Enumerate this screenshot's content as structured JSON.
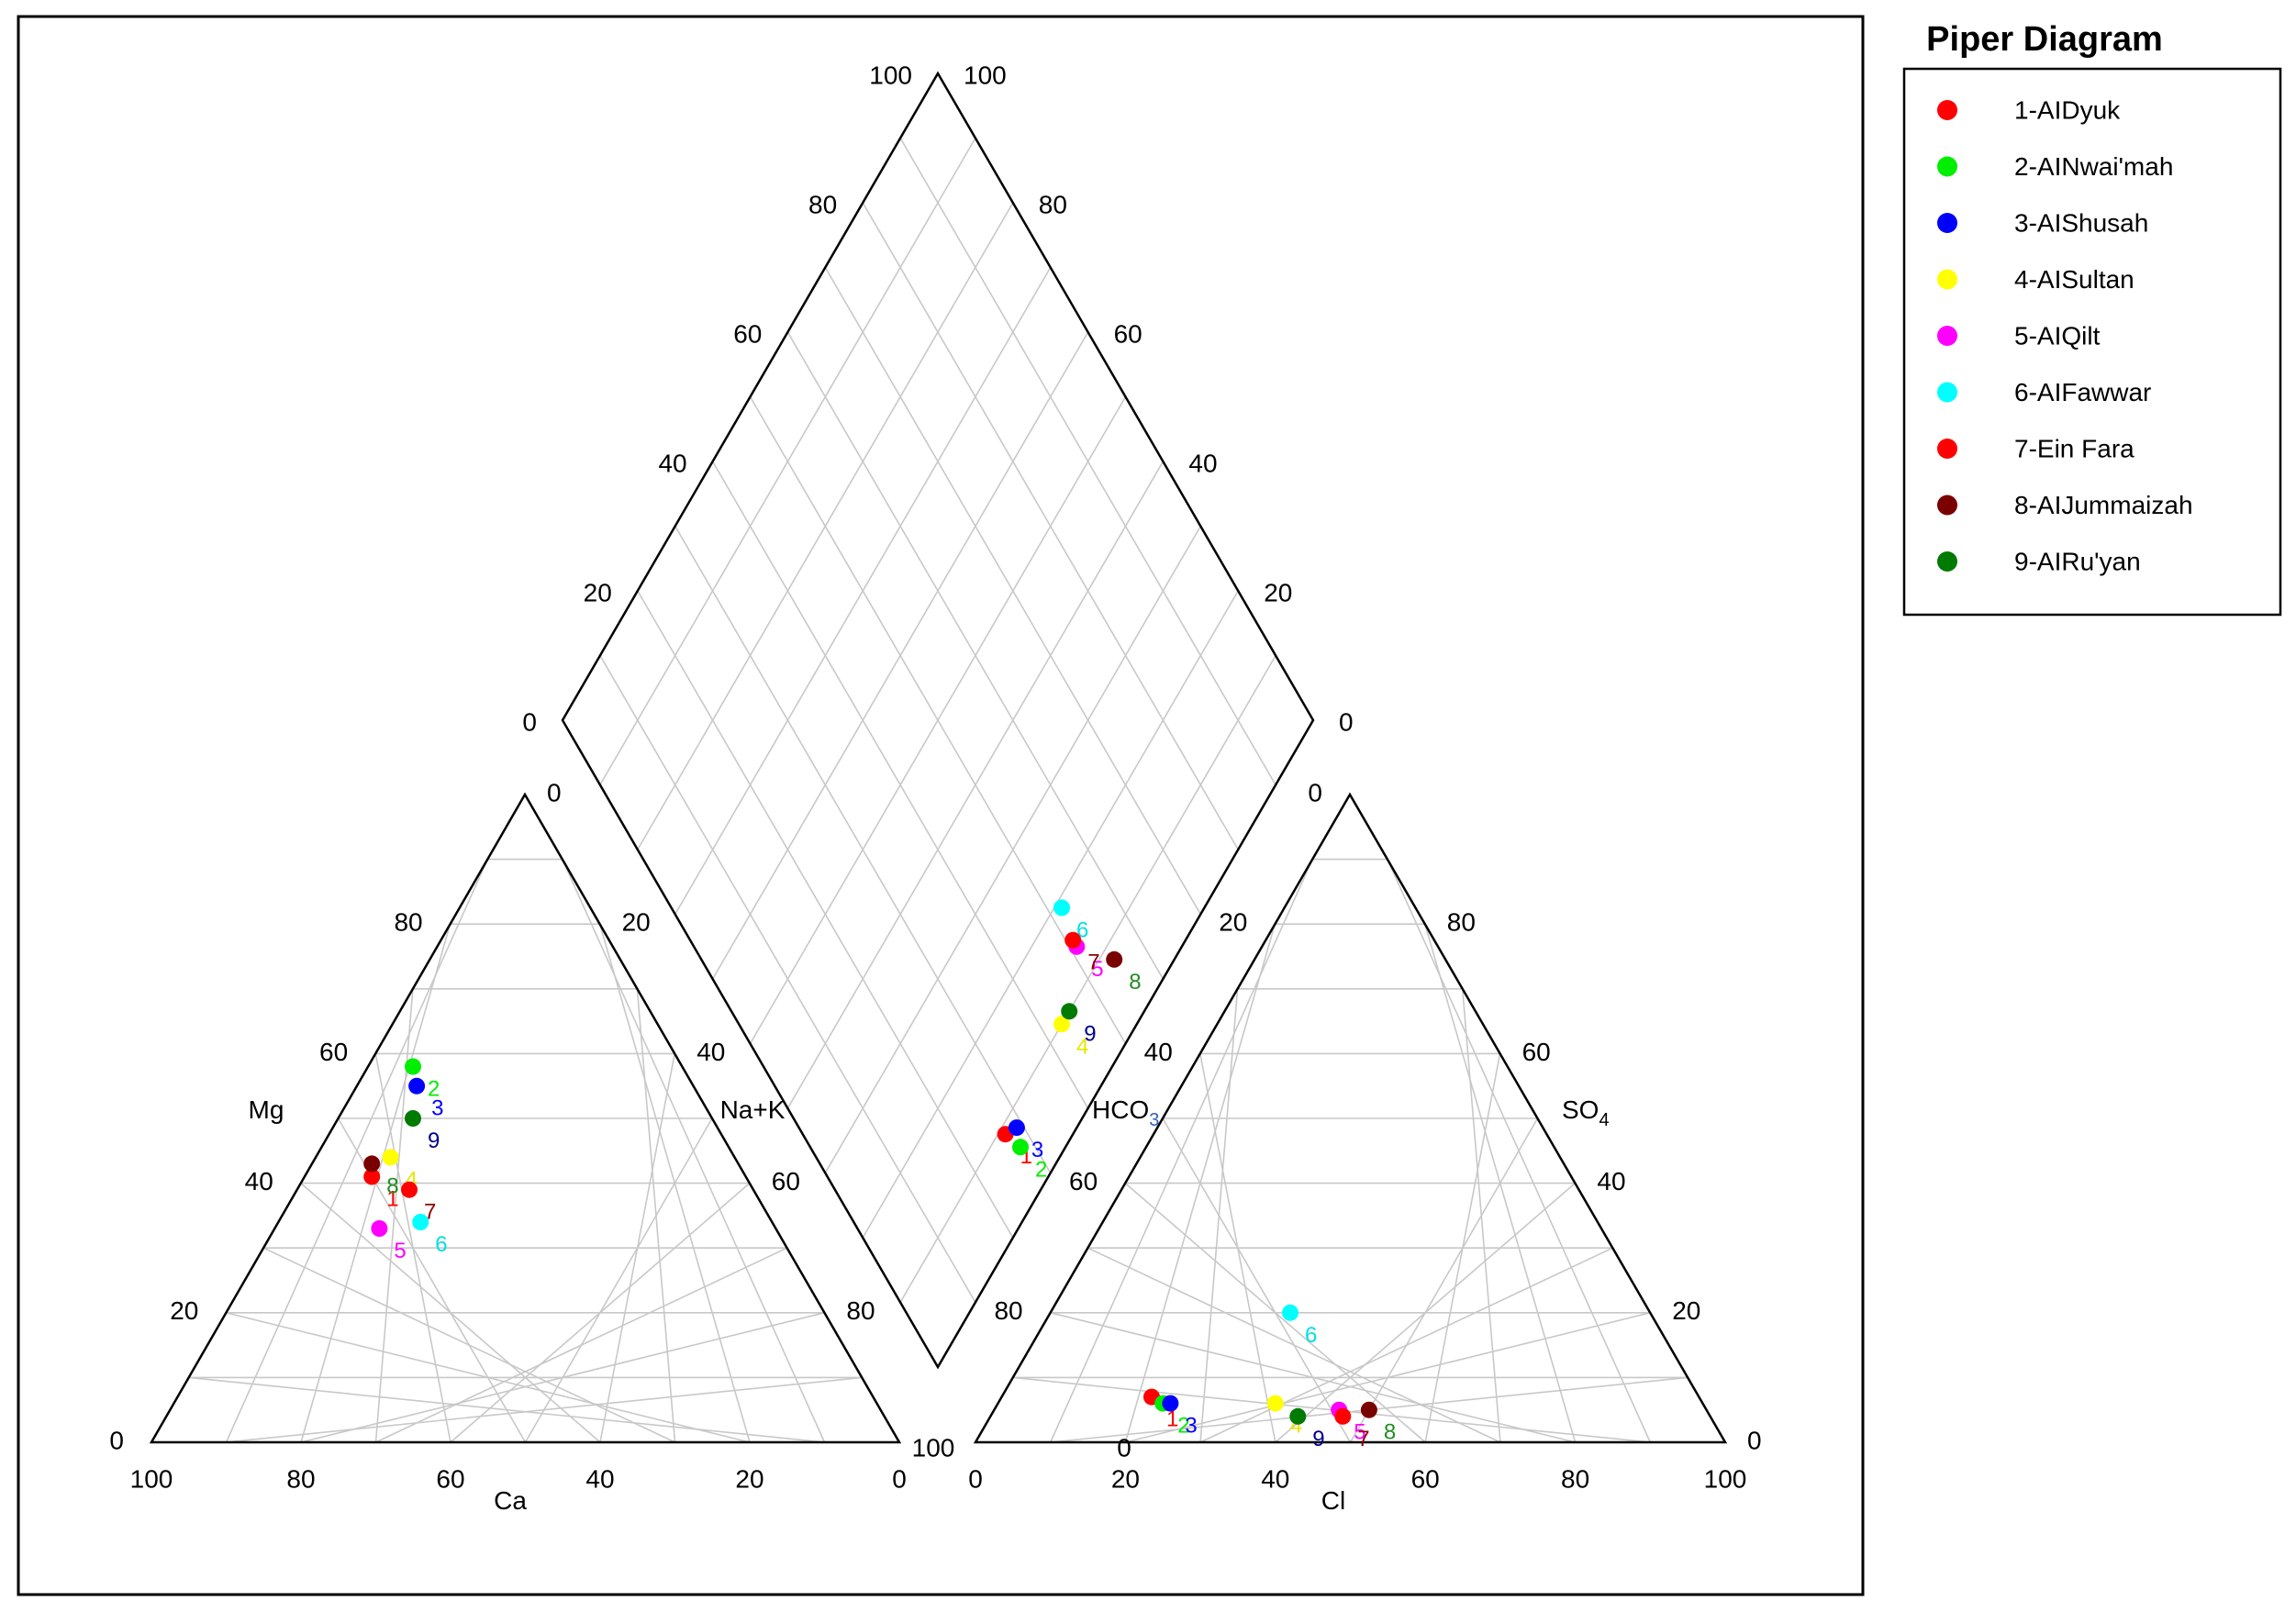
{
  "chart_data": {
    "type": "scatter",
    "subtype": "piper-trilinear",
    "legend": {
      "title": "Piper Diagram",
      "position": "right"
    },
    "axis_labels": {
      "cation_left": "Mg",
      "cation_right": "Na+K",
      "cation_bottom": "Ca",
      "anion_left": "HCO",
      "anion_left_sub": "3",
      "anion_right": "SO",
      "anion_right_sub": "4",
      "anion_bottom": "Cl"
    },
    "ticks": [
      "0",
      "20",
      "40",
      "60",
      "80",
      "100"
    ],
    "samples": [
      {
        "id": "1",
        "name": "1-AIDyuk",
        "color": "#ff0000",
        "label_color": "#ff0000",
        "mg": 41,
        "ca": 50,
        "cl": 20,
        "so4": 7
      },
      {
        "id": "2",
        "name": "2-AINwai'mah",
        "color": "#00ee00",
        "label_color": "#00ee00",
        "mg": 58,
        "ca": 36,
        "cl": 22,
        "so4": 6
      },
      {
        "id": "3",
        "name": "3-AIShusah",
        "color": "#0000ff",
        "label_color": "#0000ff",
        "mg": 55,
        "ca": 37,
        "cl": 23,
        "so4": 6
      },
      {
        "id": "4",
        "name": "4-AISultan",
        "color": "#ffff00",
        "label_color": "#e6e600",
        "mg": 44,
        "ca": 46,
        "cl": 37,
        "so4": 6
      },
      {
        "id": "5",
        "name": "5-AIQilt",
        "color": "#ff00ff",
        "label_color": "#ff00ff",
        "mg": 33,
        "ca": 53,
        "cl": 46,
        "so4": 5
      },
      {
        "id": "6",
        "name": "6-AIFawwar",
        "color": "#00ffff",
        "label_color": "#00e0e0",
        "mg": 34,
        "ca": 47,
        "cl": 32,
        "so4": 20
      },
      {
        "id": "7",
        "name": "7-Ein Fara",
        "color": "#ff0000",
        "label_color": "#8b0000",
        "mg": 39,
        "ca": 46,
        "cl": 47,
        "so4": 4
      },
      {
        "id": "8",
        "name": "8-AIJummaizah",
        "color": "#7a0000",
        "label_color": "#228b22",
        "mg": 43,
        "ca": 49,
        "cl": 50,
        "so4": 5
      },
      {
        "id": "9",
        "name": "9-AIRu'yan",
        "color": "#007a00",
        "label_color": "#00008b",
        "mg": 50,
        "ca": 40,
        "cl": 41,
        "so4": 4
      }
    ]
  }
}
